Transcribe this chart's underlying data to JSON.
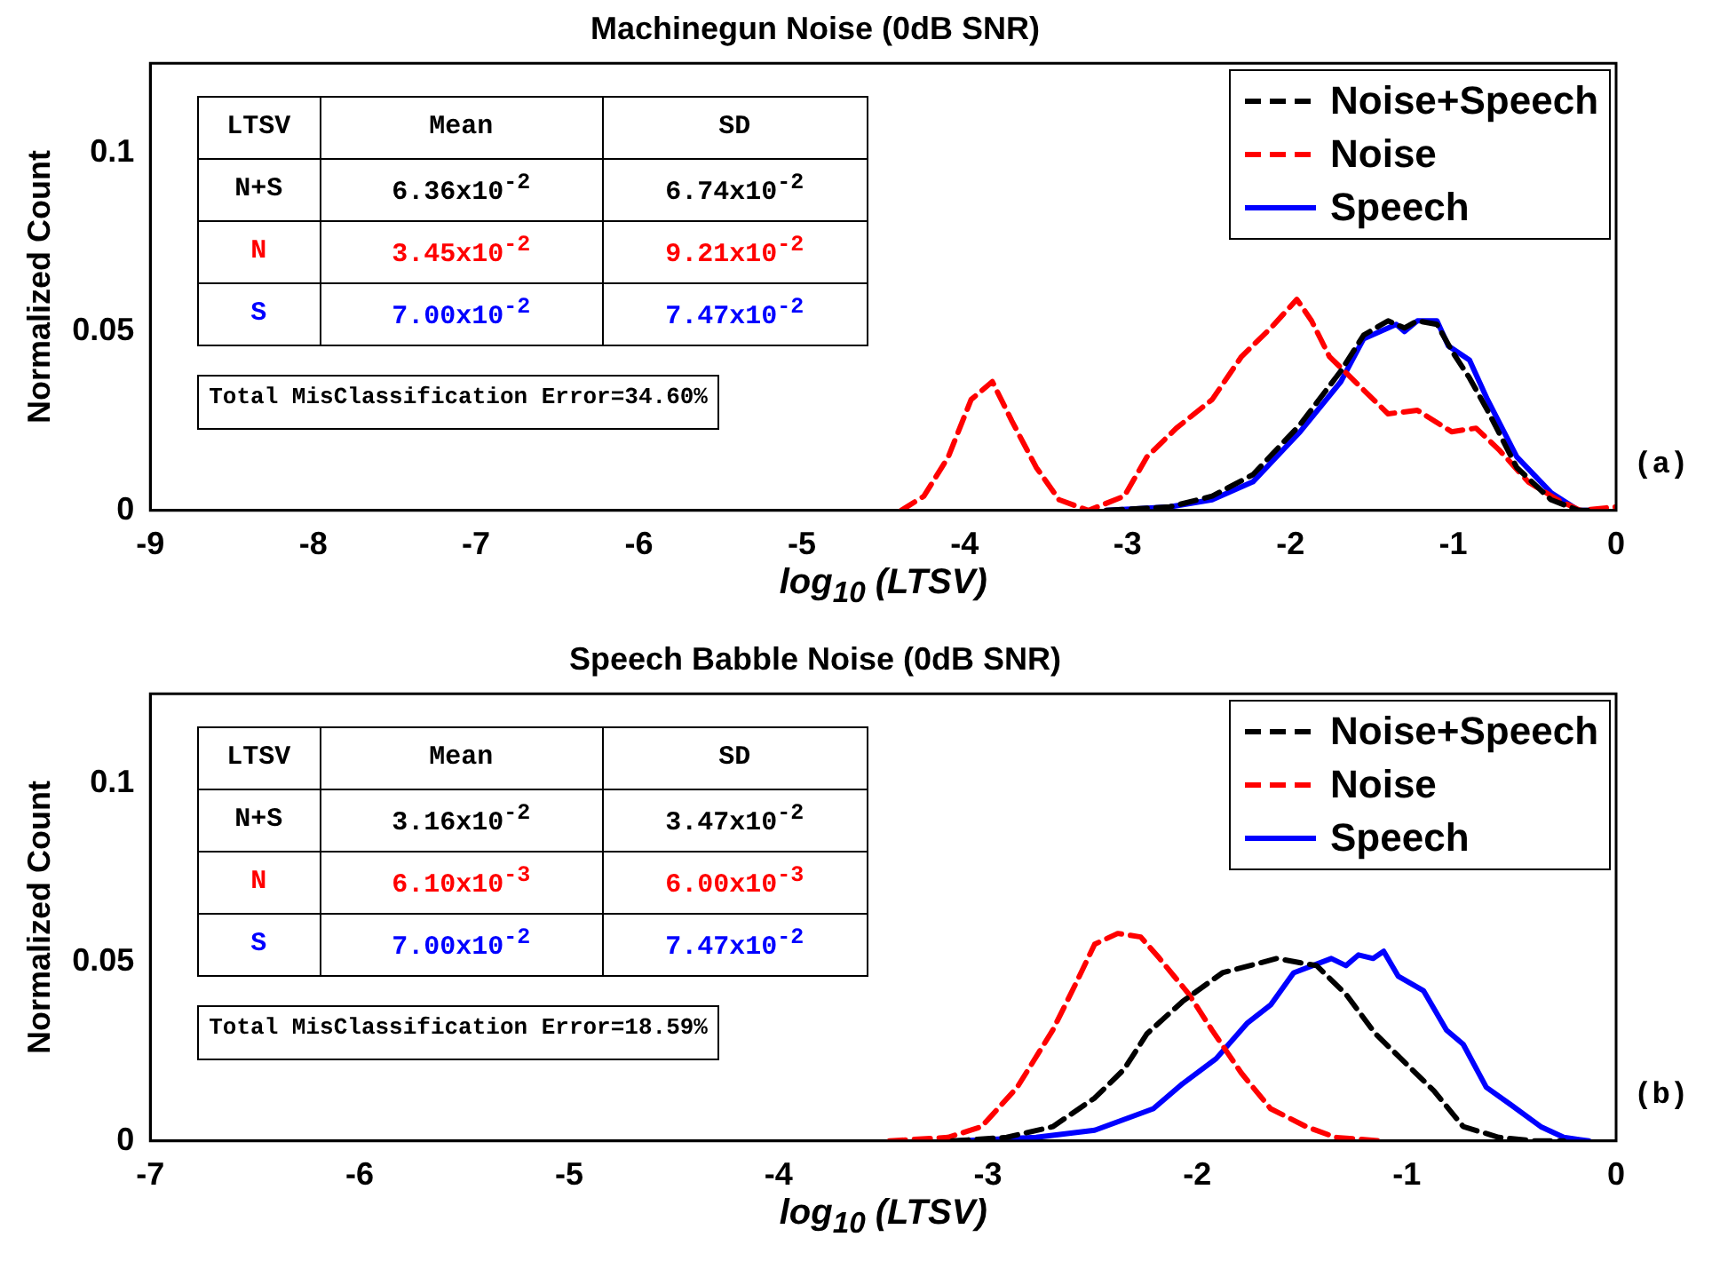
{
  "chart_data": [
    {
      "type": "line",
      "title": "Machinegun Noise (0dB SNR)",
      "xlabel": "log$_{10}$ (LTSV)",
      "ylabel": "Normalized Count",
      "xlim": [
        -9,
        0
      ],
      "xticks": [
        -9,
        -8,
        -7,
        -6,
        -5,
        -4,
        -3,
        -2,
        -1,
        0
      ],
      "ylim": [
        0,
        0.125
      ],
      "yticks": [
        0,
        0.05,
        0.1
      ],
      "legend": "top right",
      "annotations": [
        "LTSV",
        "Mean",
        "SD",
        "N+S",
        "6.36x10$^{-2}$",
        "6.74x10$^{-2}$",
        "N",
        "3.45x10$^{-2}$",
        "9.21x10$^{-2}$",
        "S",
        "7.00x10$^{-2}$",
        "7.47x10$^{-2}$",
        "Total MisClassification Error=34.60%",
        "(a)"
      ],
      "series": [
        {
          "name": "Noise+Speech",
          "color": "#000000",
          "line_style": "dashed",
          "x": [
            -3.13,
            -2.74,
            -2.48,
            -2.23,
            -1.94,
            -1.69,
            -1.55,
            -1.4,
            -1.3,
            -1.22,
            -1.1,
            -1.0,
            -0.9,
            -0.79,
            -0.61,
            -0.4,
            -0.23,
            -0.13
          ],
          "values": [
            0,
            0.001,
            0.004,
            0.01,
            0.024,
            0.039,
            0.049,
            0.053,
            0.051,
            0.053,
            0.052,
            0.044,
            0.037,
            0.028,
            0.012,
            0.003,
            0,
            0
          ]
        },
        {
          "name": "Noise",
          "color": "#ff0000",
          "line_style": "dashed",
          "x": [
            -4.39,
            -4.25,
            -4.1,
            -3.96,
            -3.83,
            -3.71,
            -3.56,
            -3.42,
            -3.24,
            -3.02,
            -2.88,
            -2.7,
            -2.48,
            -2.3,
            -2.12,
            -1.96,
            -1.87,
            -1.76,
            -1.58,
            -1.4,
            -1.22,
            -1.01,
            -0.86,
            -0.72,
            -0.54,
            -0.36,
            -0.22,
            0
          ],
          "values": [
            0,
            0.004,
            0.015,
            0.031,
            0.036,
            0.025,
            0.012,
            0.003,
            0,
            0.004,
            0.015,
            0.023,
            0.031,
            0.043,
            0.051,
            0.059,
            0.053,
            0.043,
            0.035,
            0.027,
            0.028,
            0.022,
            0.023,
            0.017,
            0.008,
            0.003,
            0,
            0.001
          ]
        },
        {
          "name": "Speech",
          "color": "#0000ff",
          "line_style": "solid",
          "x": [
            -3.13,
            -2.74,
            -2.48,
            -2.23,
            -1.94,
            -1.69,
            -1.55,
            -1.35,
            -1.3,
            -1.22,
            -1.1,
            -1.03,
            -0.9,
            -0.79,
            -0.61,
            -0.4,
            -0.23,
            -0.13
          ],
          "values": [
            0,
            0.001,
            0.003,
            0.008,
            0.022,
            0.036,
            0.048,
            0.052,
            0.05,
            0.053,
            0.053,
            0.046,
            0.042,
            0.031,
            0.015,
            0.005,
            0,
            0
          ]
        }
      ]
    },
    {
      "type": "line",
      "title": "Speech Babble Noise (0dB SNR)",
      "xlabel": "log$_{10}$ (LTSV)",
      "ylabel": "Normalized Count",
      "xlim": [
        -7,
        0
      ],
      "xticks": [
        -7,
        -6,
        -5,
        -4,
        -3,
        -2,
        -1,
        0
      ],
      "ylim": [
        0,
        0.125
      ],
      "yticks": [
        0,
        0.05,
        0.1
      ],
      "legend": "top right",
      "annotations": [
        "LTSV",
        "Mean",
        "SD",
        "N+S",
        "3.16x10$^{-2}$",
        "3.47x10$^{-2}$",
        "N",
        "6.10x10$^{-3}$",
        "6.00x10$^{-3}$",
        "S",
        "7.00x10$^{-2}$",
        "7.47x10$^{-2}$",
        "Total MisClassification Error=18.59%",
        "(b)"
      ],
      "series": [
        {
          "name": "Noise+Speech",
          "color": "#000000",
          "line_style": "dashed",
          "x": [
            -3.17,
            -2.91,
            -2.69,
            -2.49,
            -2.35,
            -2.24,
            -2.07,
            -1.88,
            -1.62,
            -1.43,
            -1.29,
            -1.15,
            -1.01,
            -0.87,
            -0.73,
            -0.56,
            -0.39,
            -0.25
          ],
          "values": [
            0,
            0.001,
            0.004,
            0.012,
            0.02,
            0.03,
            0.039,
            0.047,
            0.051,
            0.049,
            0.041,
            0.03,
            0.022,
            0.014,
            0.004,
            0.001,
            0,
            0
          ]
        },
        {
          "name": "Noise",
          "color": "#ff0000",
          "line_style": "dashed",
          "x": [
            -3.47,
            -3.19,
            -3.03,
            -2.86,
            -2.69,
            -2.58,
            -2.49,
            -2.38,
            -2.27,
            -2.18,
            -2.04,
            -1.93,
            -1.79,
            -1.65,
            -1.48,
            -1.34,
            -1.12
          ],
          "values": [
            0,
            0.001,
            0.004,
            0.015,
            0.031,
            0.044,
            0.055,
            0.058,
            0.057,
            0.051,
            0.041,
            0.031,
            0.019,
            0.009,
            0.004,
            0.001,
            0
          ]
        },
        {
          "name": "Speech",
          "color": "#0000ff",
          "line_style": "solid",
          "x": [
            -3.14,
            -2.77,
            -2.49,
            -2.21,
            -2.07,
            -1.91,
            -1.76,
            -1.65,
            -1.54,
            -1.36,
            -1.29,
            -1.23,
            -1.16,
            -1.11,
            -1.04,
            -0.92,
            -0.81,
            -0.73,
            -0.62,
            -0.5,
            -0.36,
            -0.25,
            -0.13
          ],
          "values": [
            0,
            0.001,
            0.003,
            0.009,
            0.016,
            0.023,
            0.033,
            0.038,
            0.047,
            0.051,
            0.049,
            0.052,
            0.051,
            0.053,
            0.046,
            0.042,
            0.031,
            0.027,
            0.015,
            0.01,
            0.004,
            0.001,
            0
          ]
        }
      ]
    }
  ]
}
